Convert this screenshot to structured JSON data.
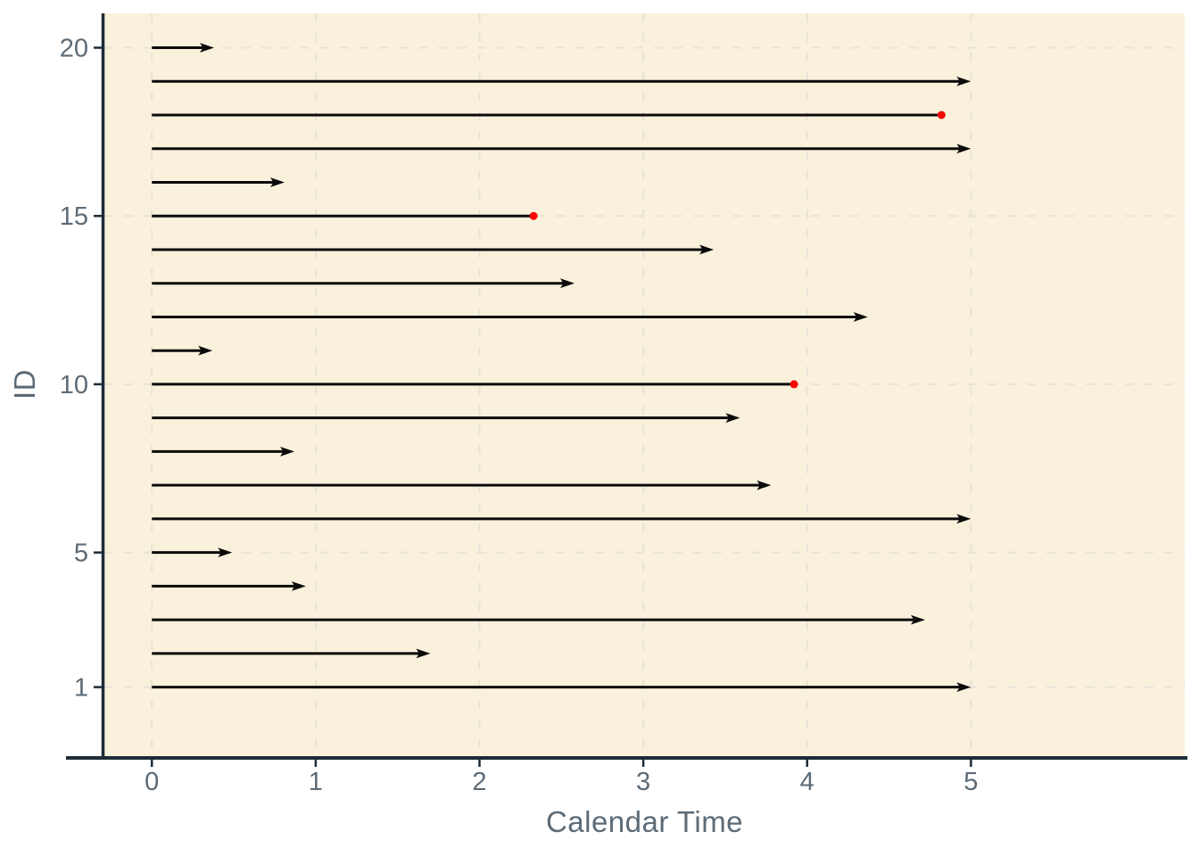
{
  "colors": {
    "panel_bg": "#faf1dc",
    "outer_bg": "#ffffff",
    "grid": "#e7e3d6",
    "spine": "#1d2c38",
    "text": "#5c6b77",
    "arrow": "#0b0b0b",
    "event_dot": "#f50505"
  },
  "chart_data": {
    "type": "scatter",
    "mark": "horizontal_arrow_segments",
    "title": "",
    "xlabel": "Calendar Time",
    "ylabel": "ID",
    "x_ticks": [
      0,
      1,
      2,
      3,
      4,
      5
    ],
    "y_ticks": [
      1,
      5,
      10,
      15,
      20
    ],
    "xlim": [
      -0.29,
      6.305
    ],
    "ylim": [
      -1.05,
      21.02
    ],
    "grid": "dashed major gridlines, both axes",
    "legend_position": "none",
    "censor_marker": "black arrowhead",
    "event_marker": "red dot",
    "subjects": [
      {
        "id": 1,
        "start": 0,
        "end": 5.0,
        "event": false
      },
      {
        "id": 2,
        "start": 0,
        "end": 1.7,
        "event": false
      },
      {
        "id": 3,
        "start": 0,
        "end": 4.72,
        "event": false
      },
      {
        "id": 4,
        "start": 0,
        "end": 0.94,
        "event": false
      },
      {
        "id": 5,
        "start": 0,
        "end": 0.49,
        "event": false
      },
      {
        "id": 6,
        "start": 0,
        "end": 5.0,
        "event": false
      },
      {
        "id": 7,
        "start": 0,
        "end": 3.78,
        "event": false
      },
      {
        "id": 8,
        "start": 0,
        "end": 0.87,
        "event": false
      },
      {
        "id": 9,
        "start": 0,
        "end": 3.59,
        "event": false
      },
      {
        "id": 10,
        "start": 0,
        "end": 3.92,
        "event": true
      },
      {
        "id": 11,
        "start": 0,
        "end": 0.37,
        "event": false
      },
      {
        "id": 12,
        "start": 0,
        "end": 4.37,
        "event": false
      },
      {
        "id": 13,
        "start": 0,
        "end": 2.58,
        "event": false
      },
      {
        "id": 14,
        "start": 0,
        "end": 3.43,
        "event": false
      },
      {
        "id": 15,
        "start": 0,
        "end": 2.33,
        "event": true
      },
      {
        "id": 16,
        "start": 0,
        "end": 0.81,
        "event": false
      },
      {
        "id": 17,
        "start": 0,
        "end": 5.0,
        "event": false
      },
      {
        "id": 18,
        "start": 0,
        "end": 4.82,
        "event": true
      },
      {
        "id": 19,
        "start": 0,
        "end": 5.0,
        "event": false
      },
      {
        "id": 20,
        "start": 0,
        "end": 0.38,
        "event": false
      }
    ]
  }
}
